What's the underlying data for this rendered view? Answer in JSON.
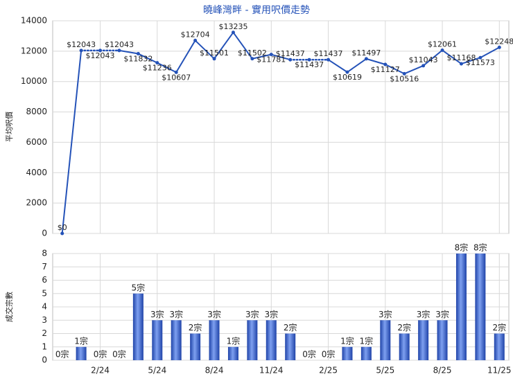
{
  "chart_data": [
    {
      "type": "line",
      "title": "曉峰灣畔 - 實用呎價走勢",
      "y_label": "平均呎價",
      "color": "#2452b8",
      "values": [
        0,
        12043,
        12043,
        12043,
        11832,
        11236,
        10607,
        12704,
        11501,
        13235,
        11502,
        11781,
        11437,
        11437,
        11437,
        10619,
        11497,
        11127,
        10516,
        11043,
        12061,
        11168,
        11573,
        12248
      ],
      "value_labels": [
        "$0",
        "$12043",
        "$12043",
        "$12043",
        "$11832",
        "$11236",
        "$10607",
        "$12704",
        "$11501",
        "$13235",
        "$11502",
        "$11781",
        "$11437",
        "$11437",
        "$11437",
        "$10619",
        "$11497",
        "$11127",
        "$10516",
        "$11043",
        "$12061",
        "$11168",
        "$11573",
        "$12248"
      ],
      "ylim": [
        0,
        14000
      ],
      "yticks": [
        0,
        2000,
        4000,
        6000,
        8000,
        10000,
        12000,
        14000
      ],
      "grid": true
    },
    {
      "type": "bar",
      "y_label": "成交宗數",
      "color": "#2d57c4",
      "categories": [
        null,
        null,
        "2/24",
        null,
        null,
        "5/24",
        null,
        null,
        "8/24",
        null,
        null,
        "11/24",
        null,
        null,
        "2/25",
        null,
        null,
        "5/25",
        null,
        null,
        "8/25",
        null,
        null,
        "11/25"
      ],
      "values": [
        0,
        1,
        0,
        0,
        5,
        3,
        3,
        2,
        3,
        1,
        3,
        3,
        2,
        0,
        0,
        1,
        1,
        3,
        2,
        3,
        3,
        8,
        8,
        2
      ],
      "value_labels": [
        "0宗",
        "1宗",
        "0宗",
        "0宗",
        "5宗",
        "3宗",
        "3宗",
        "2宗",
        "3宗",
        "1宗",
        "3宗",
        "3宗",
        "2宗",
        "0宗",
        "0宗",
        "1宗",
        "1宗",
        "3宗",
        "2宗",
        "3宗",
        "3宗",
        "8宗",
        "8宗",
        "2宗"
      ],
      "ylim": [
        0,
        8
      ],
      "yticks": [
        0,
        1,
        2,
        3,
        4,
        5,
        6,
        7,
        8
      ],
      "grid": true
    }
  ]
}
